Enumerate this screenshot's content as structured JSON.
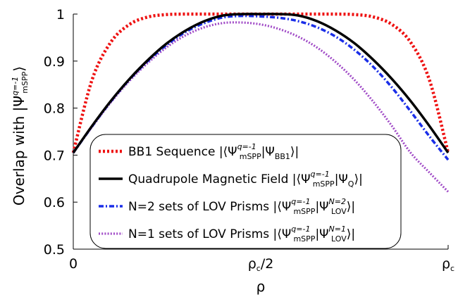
{
  "chart_data": {
    "type": "line",
    "xlabel": "ρ",
    "ylabel": "Overlap with |Ψ",
    "ylabel_sup": "q=-1",
    "ylabel_sub": "mSPP",
    "ylabel_close": "⟩",
    "xlim": [
      0,
      1
    ],
    "ylim": [
      0.5,
      1.0
    ],
    "x_ticks": [
      {
        "value": 0,
        "label": "0",
        "sub": ""
      },
      {
        "value": 0.5,
        "label": "ρ",
        "sub": "c",
        "suffix": "/2"
      },
      {
        "value": 1,
        "label": "ρ",
        "sub": "c",
        "suffix": ""
      }
    ],
    "y_ticks": [
      {
        "value": 0.5,
        "label": "0.5"
      },
      {
        "value": 0.6,
        "label": "0.6"
      },
      {
        "value": 0.7,
        "label": "0.7"
      },
      {
        "value": 0.8,
        "label": "0.8"
      },
      {
        "value": 0.9,
        "label": "0.9"
      },
      {
        "value": 1.0,
        "label": "1"
      }
    ],
    "grid": false,
    "legend_position": "bottom-center",
    "x": [
      0,
      0.05,
      0.1,
      0.15,
      0.2,
      0.25,
      0.3,
      0.35,
      0.4,
      0.45,
      0.5,
      0.55,
      0.6,
      0.65,
      0.7,
      0.75,
      0.8,
      0.85,
      0.9,
      0.95,
      1.0
    ],
    "series": [
      {
        "name": "BB1 Sequence",
        "formula_open": "|⟨Ψ",
        "formula_sup": "q=-1",
        "formula_sub": "mSPP",
        "formula_mid": "|Ψ",
        "formula_sub2": "BB1",
        "formula_sup2": "",
        "formula_close": "⟩|",
        "color": "#ee1111",
        "style": "dotted",
        "values": [
          0.705,
          0.86,
          0.94,
          0.978,
          0.994,
          0.999,
          1.0,
          1.0,
          1.0,
          1.0,
          1.0,
          1.0,
          1.0,
          1.0,
          1.0,
          0.999,
          0.994,
          0.978,
          0.94,
          0.86,
          0.705
        ]
      },
      {
        "name": "Quadrupole Magnetic Field",
        "formula_open": "|⟨Ψ",
        "formula_sup": "q=-1",
        "formula_sub": "mSPP",
        "formula_mid": "|Ψ",
        "formula_sub2": "Q",
        "formula_sup2": "",
        "formula_close": "⟩|",
        "color": "#000000",
        "style": "solid",
        "values": [
          0.705,
          0.762,
          0.815,
          0.862,
          0.903,
          0.938,
          0.965,
          0.985,
          0.997,
          1.0,
          1.0,
          1.0,
          0.997,
          0.985,
          0.965,
          0.938,
          0.903,
          0.862,
          0.815,
          0.762,
          0.705
        ]
      },
      {
        "name": "N=2 sets of LOV Prisms",
        "formula_open": "|⟨Ψ",
        "formula_sup": "q=-1",
        "formula_sub": "mSPP",
        "formula_mid": "|Ψ",
        "formula_sub2": "LOV",
        "formula_sup2": "N=2",
        "formula_close": "⟩|",
        "color": "#1a2ee8",
        "style": "dashdot",
        "values": [
          0.705,
          0.761,
          0.814,
          0.861,
          0.901,
          0.935,
          0.962,
          0.981,
          0.993,
          0.996,
          0.995,
          0.992,
          0.985,
          0.972,
          0.952,
          0.924,
          0.888,
          0.844,
          0.793,
          0.74,
          0.69
        ]
      },
      {
        "name": "N=1 sets of LOV Prisms",
        "formula_open": "|⟨Ψ",
        "formula_sup": "q=-1",
        "formula_sub": "mSPP",
        "formula_mid": "|Ψ",
        "formula_sub2": "LOV",
        "formula_sup2": "N=1",
        "formula_close": "⟩|",
        "color": "#a14cc7",
        "style": "dotted-fine",
        "values": [
          0.705,
          0.76,
          0.812,
          0.858,
          0.897,
          0.93,
          0.955,
          0.972,
          0.981,
          0.982,
          0.978,
          0.968,
          0.952,
          0.929,
          0.898,
          0.86,
          0.814,
          0.762,
          0.705,
          0.663,
          0.622
        ]
      }
    ]
  }
}
